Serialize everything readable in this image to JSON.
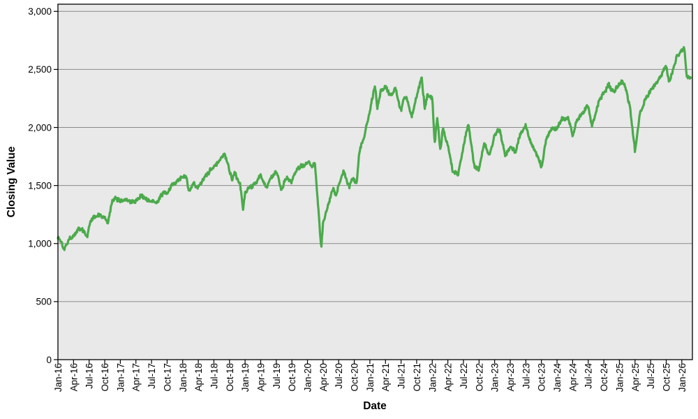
{
  "chart_data": {
    "type": "line",
    "xlabel": "Date",
    "ylabel": "Closing Value",
    "legend": "none",
    "grid": "horizontal",
    "ylim": [
      0,
      3062
    ],
    "xlim_years_from_2016": [
      0,
      10.17
    ],
    "y_ticks": [
      {
        "label": "0",
        "v": 0
      },
      {
        "label": "500",
        "v": 500
      },
      {
        "label": "1,000",
        "v": 1000
      },
      {
        "label": "1,500",
        "v": 1500
      },
      {
        "label": "2,000",
        "v": 2000
      },
      {
        "label": "2,500",
        "v": 2500
      },
      {
        "label": "3,000",
        "v": 3000
      }
    ],
    "x_ticks": [
      {
        "label": "Jan-16",
        "t": 0
      },
      {
        "label": "Apr-16",
        "t": 0.25
      },
      {
        "label": "Jul-16",
        "t": 0.5
      },
      {
        "label": "Oct-16",
        "t": 0.75
      },
      {
        "label": "Jan-17",
        "t": 1
      },
      {
        "label": "Apr-17",
        "t": 1.25
      },
      {
        "label": "Jul-17",
        "t": 1.5
      },
      {
        "label": "Oct-17",
        "t": 1.75
      },
      {
        "label": "Jan-18",
        "t": 2
      },
      {
        "label": "Apr-18",
        "t": 2.25
      },
      {
        "label": "Jul-18",
        "t": 2.5
      },
      {
        "label": "Oct-18",
        "t": 2.75
      },
      {
        "label": "Jan-19",
        "t": 3
      },
      {
        "label": "Apr-19",
        "t": 3.25
      },
      {
        "label": "Jul-19",
        "t": 3.5
      },
      {
        "label": "Oct-19",
        "t": 3.75
      },
      {
        "label": "Jan-20",
        "t": 4
      },
      {
        "label": "Apr-20",
        "t": 4.25
      },
      {
        "label": "Jul-20",
        "t": 4.5
      },
      {
        "label": "Oct-20",
        "t": 4.75
      },
      {
        "label": "Jan-21",
        "t": 5
      },
      {
        "label": "Apr-21",
        "t": 5.25
      },
      {
        "label": "Jul-21",
        "t": 5.5
      },
      {
        "label": "Oct-21",
        "t": 5.75
      },
      {
        "label": "Jan-22",
        "t": 6
      },
      {
        "label": "Apr-22",
        "t": 6.25
      },
      {
        "label": "Jul-22",
        "t": 6.5
      },
      {
        "label": "Oct-22",
        "t": 6.75
      },
      {
        "label": "Jan-23",
        "t": 7
      },
      {
        "label": "Apr-23",
        "t": 7.25
      },
      {
        "label": "Jul-23",
        "t": 7.5
      },
      {
        "label": "Oct-23",
        "t": 7.75
      },
      {
        "label": "Jan-24",
        "t": 8
      },
      {
        "label": "Apr-24",
        "t": 8.25
      },
      {
        "label": "Jul-24",
        "t": 8.5
      },
      {
        "label": "Oct-24",
        "t": 8.75
      },
      {
        "label": "Jan-25",
        "t": 9
      },
      {
        "label": "Apr-25",
        "t": 9.25
      },
      {
        "label": "Jul-25",
        "t": 9.5
      },
      {
        "label": "Oct-25",
        "t": 9.75
      },
      {
        "label": "Jan-26",
        "t": 10
      }
    ],
    "series": [
      {
        "name": "Closing Value",
        "color": "#4CAA4C",
        "points": [
          [
            0.0,
            1060
          ],
          [
            0.06,
            1005
          ],
          [
            0.1,
            950
          ],
          [
            0.17,
            1065
          ],
          [
            0.25,
            1105
          ],
          [
            0.33,
            1150
          ],
          [
            0.42,
            1120
          ],
          [
            0.47,
            1070
          ],
          [
            0.5,
            1160
          ],
          [
            0.58,
            1245
          ],
          [
            0.67,
            1235
          ],
          [
            0.75,
            1215
          ],
          [
            0.8,
            1150
          ],
          [
            0.87,
            1335
          ],
          [
            0.92,
            1355
          ],
          [
            1.0,
            1340
          ],
          [
            1.08,
            1375
          ],
          [
            1.17,
            1370
          ],
          [
            1.25,
            1390
          ],
          [
            1.33,
            1440
          ],
          [
            1.42,
            1400
          ],
          [
            1.5,
            1390
          ],
          [
            1.58,
            1360
          ],
          [
            1.67,
            1430
          ],
          [
            1.75,
            1460
          ],
          [
            1.83,
            1510
          ],
          [
            1.92,
            1525
          ],
          [
            2.0,
            1570
          ],
          [
            2.06,
            1575
          ],
          [
            2.1,
            1435
          ],
          [
            2.17,
            1500
          ],
          [
            2.21,
            1445
          ],
          [
            2.25,
            1480
          ],
          [
            2.33,
            1560
          ],
          [
            2.42,
            1610
          ],
          [
            2.5,
            1655
          ],
          [
            2.58,
            1705
          ],
          [
            2.67,
            1740
          ],
          [
            2.75,
            1600
          ],
          [
            2.79,
            1525
          ],
          [
            2.83,
            1590
          ],
          [
            2.92,
            1480
          ],
          [
            2.97,
            1255
          ],
          [
            3.0,
            1400
          ],
          [
            3.08,
            1460
          ],
          [
            3.17,
            1530
          ],
          [
            3.25,
            1590
          ],
          [
            3.33,
            1465
          ],
          [
            3.42,
            1560
          ],
          [
            3.5,
            1600
          ],
          [
            3.58,
            1450
          ],
          [
            3.67,
            1550
          ],
          [
            3.75,
            1500
          ],
          [
            3.83,
            1630
          ],
          [
            3.92,
            1700
          ],
          [
            4.0,
            1735
          ],
          [
            4.08,
            1700
          ],
          [
            4.12,
            1720
          ],
          [
            4.22,
            990
          ],
          [
            4.25,
            1200
          ],
          [
            4.33,
            1360
          ],
          [
            4.42,
            1510
          ],
          [
            4.46,
            1440
          ],
          [
            4.5,
            1550
          ],
          [
            4.58,
            1620
          ],
          [
            4.67,
            1505
          ],
          [
            4.71,
            1600
          ],
          [
            4.79,
            1520
          ],
          [
            4.83,
            1800
          ],
          [
            4.92,
            1950
          ],
          [
            5.0,
            2125
          ],
          [
            5.08,
            2350
          ],
          [
            5.12,
            2165
          ],
          [
            5.17,
            2320
          ],
          [
            5.25,
            2350
          ],
          [
            5.33,
            2280
          ],
          [
            5.42,
            2340
          ],
          [
            5.5,
            2160
          ],
          [
            5.54,
            2295
          ],
          [
            5.58,
            2300
          ],
          [
            5.67,
            2130
          ],
          [
            5.75,
            2300
          ],
          [
            5.83,
            2470
          ],
          [
            5.88,
            2200
          ],
          [
            5.92,
            2310
          ],
          [
            6.0,
            2290
          ],
          [
            6.04,
            1900
          ],
          [
            6.08,
            2120
          ],
          [
            6.13,
            1815
          ],
          [
            6.17,
            2015
          ],
          [
            6.25,
            1870
          ],
          [
            6.33,
            1655
          ],
          [
            6.42,
            1630
          ],
          [
            6.5,
            1860
          ],
          [
            6.58,
            2025
          ],
          [
            6.63,
            1815
          ],
          [
            6.67,
            1655
          ],
          [
            6.75,
            1625
          ],
          [
            6.83,
            1855
          ],
          [
            6.92,
            1735
          ],
          [
            7.0,
            1935
          ],
          [
            7.08,
            1990
          ],
          [
            7.17,
            1775
          ],
          [
            7.25,
            1875
          ],
          [
            7.33,
            1815
          ],
          [
            7.42,
            1975
          ],
          [
            7.5,
            2030
          ],
          [
            7.58,
            1875
          ],
          [
            7.67,
            1775
          ],
          [
            7.75,
            1650
          ],
          [
            7.83,
            1890
          ],
          [
            7.92,
            1995
          ],
          [
            8.0,
            2000
          ],
          [
            8.08,
            2075
          ],
          [
            8.17,
            2095
          ],
          [
            8.25,
            1955
          ],
          [
            8.33,
            2095
          ],
          [
            8.42,
            2125
          ],
          [
            8.5,
            2195
          ],
          [
            8.56,
            2000
          ],
          [
            8.67,
            2225
          ],
          [
            8.75,
            2280
          ],
          [
            8.83,
            2365
          ],
          [
            8.92,
            2305
          ],
          [
            9.0,
            2365
          ],
          [
            9.08,
            2375
          ],
          [
            9.17,
            2150
          ],
          [
            9.25,
            1765
          ],
          [
            9.33,
            2100
          ],
          [
            9.42,
            2225
          ],
          [
            9.5,
            2300
          ],
          [
            9.58,
            2355
          ],
          [
            9.67,
            2425
          ],
          [
            9.75,
            2525
          ],
          [
            9.79,
            2395
          ],
          [
            9.83,
            2435
          ],
          [
            9.92,
            2620
          ],
          [
            10.0,
            2700
          ],
          [
            10.04,
            2715
          ],
          [
            10.08,
            2480
          ],
          [
            10.12,
            2445
          ],
          [
            10.15,
            2460
          ]
        ]
      }
    ],
    "style": {
      "plot_bg": "#E9E9E9",
      "grid_color": "#8A8A8A",
      "border_color": "#000000",
      "tick_color": "#000000",
      "text_color": "#000000",
      "line_width": 3.2
    }
  }
}
